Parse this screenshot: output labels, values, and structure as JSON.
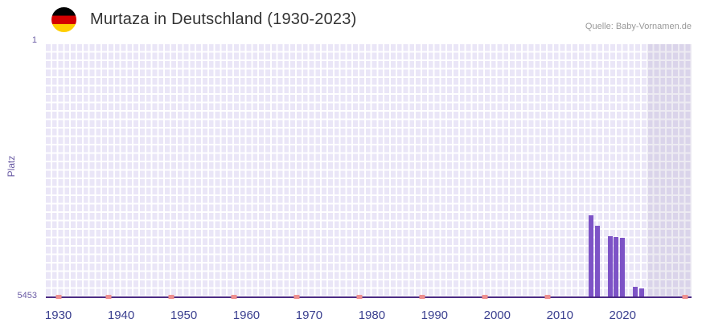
{
  "header": {
    "title": "Murtaza in Deutschland (1930-2023)",
    "source": "Quelle: Baby-Vornamen.de",
    "flag_icon": "germany-flag"
  },
  "chart_data": {
    "type": "bar",
    "title": "Murtaza in Deutschland (1930-2023)",
    "xlabel": "",
    "ylabel": "Platz",
    "y_axis_inverted": true,
    "y_top_label": "1",
    "y_bottom_label": "5453",
    "ylim": [
      1,
      5453
    ],
    "xlim": [
      1928,
      2031
    ],
    "x_ticks": [
      1930,
      1940,
      1950,
      1960,
      1970,
      1980,
      1990,
      2000,
      2010,
      2020
    ],
    "grid": true,
    "legend_position": "none",
    "bars": [
      {
        "year": 2015,
        "rank": 3690
      },
      {
        "year": 2016,
        "rank": 3910
      },
      {
        "year": 2018,
        "rank": 4140
      },
      {
        "year": 2019,
        "rank": 4150
      },
      {
        "year": 2020,
        "rank": 4180
      },
      {
        "year": 2022,
        "rank": 5230
      },
      {
        "year": 2023,
        "rank": 5260
      }
    ],
    "baseline_marker_years": [
      1930,
      1938,
      1948,
      1958,
      1968,
      1978,
      1988,
      1998,
      2008,
      2030
    ],
    "no_data_shade_from": 2024
  },
  "colors": {
    "bar": "#7d53c6",
    "baseline_marker": "#ee8f8f",
    "axis_line": "#4b2a84",
    "plot_background": "#eae6f7",
    "grid_line": "#ffffff",
    "shade_overlay": "rgba(77,61,130,0.10)",
    "y_label_text": "#6b5ca5",
    "x_tick_text": "#3a3f8f",
    "title_text": "#333333",
    "source_text": "#999999"
  }
}
